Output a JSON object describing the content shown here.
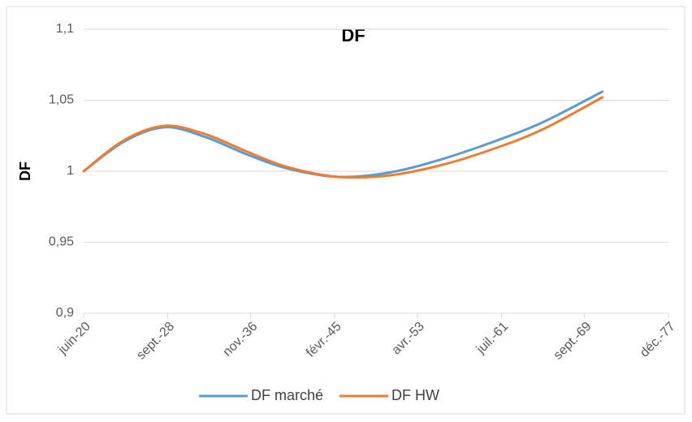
{
  "chart_data": {
    "type": "line",
    "title": "DF",
    "y_label": "DF",
    "x": [
      "2020-06",
      "2024-06",
      "2028-06",
      "2032-06",
      "2036-06",
      "2040-06",
      "2045-06",
      "2050-06",
      "2055-06",
      "2060-06",
      "2065-06",
      "2071-06"
    ],
    "series": [
      {
        "name": "DF marché",
        "color": "#5b9bd5",
        "values": [
          1,
          1.021,
          1.031,
          1.024,
          1.012,
          1.002,
          0.996,
          0.999,
          1.008,
          1.02,
          1.034,
          1.056
        ]
      },
      {
        "name": "DF HW",
        "color": "#ed7d31",
        "values": [
          1,
          1.022,
          1.032,
          1.026,
          1.014,
          1.003,
          0.996,
          0.997,
          1.004,
          1.015,
          1.029,
          1.052
        ]
      }
    ],
    "xlim": [
      "2020-06",
      "2077-12"
    ],
    "xticks": [
      {
        "value": "2020-06",
        "label": "juin-20"
      },
      {
        "value": "2028-09",
        "label": "sept.-28"
      },
      {
        "value": "2036-11",
        "label": "nov.-36"
      },
      {
        "value": "2045-02",
        "label": "févr.-45"
      },
      {
        "value": "2053-04",
        "label": "avr.-53"
      },
      {
        "value": "2061-07",
        "label": "juil.-61"
      },
      {
        "value": "2069-09",
        "label": "sept.-69"
      },
      {
        "value": "2077-12",
        "label": "déc.-77"
      }
    ],
    "ylim": [
      0.9,
      1.1
    ],
    "yticks": [
      {
        "value": 0.9,
        "label": "0,9"
      },
      {
        "value": 0.95,
        "label": "0,95"
      },
      1,
      {
        "value": 1.05,
        "label": "1,05"
      },
      {
        "value": 1.1,
        "label": "1,1"
      }
    ],
    "grid": true,
    "legend": "bottom"
  }
}
